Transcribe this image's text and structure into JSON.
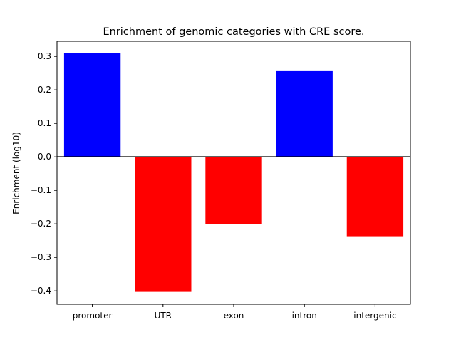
{
  "chart_data": {
    "type": "bar",
    "title": "Enrichment of genomic categories with CRE score.",
    "xlabel": "",
    "ylabel": "Enrichment (log10)",
    "categories": [
      "promoter",
      "UTR",
      "exon",
      "intron",
      "intergenic"
    ],
    "values": [
      0.31,
      -0.403,
      -0.201,
      0.258,
      -0.237
    ],
    "ylim": [
      -0.44,
      0.345
    ],
    "yticks": [
      -0.4,
      -0.3,
      -0.2,
      -0.1,
      0.0,
      0.1,
      0.2,
      0.3
    ],
    "ytick_labels": [
      "−0.4",
      "−0.3",
      "−0.2",
      "−0.1",
      "0.0",
      "0.1",
      "0.2",
      "0.3"
    ],
    "positive_color": "#0000ff",
    "negative_color": "#ff0000",
    "zero_line": true,
    "grid": false
  }
}
